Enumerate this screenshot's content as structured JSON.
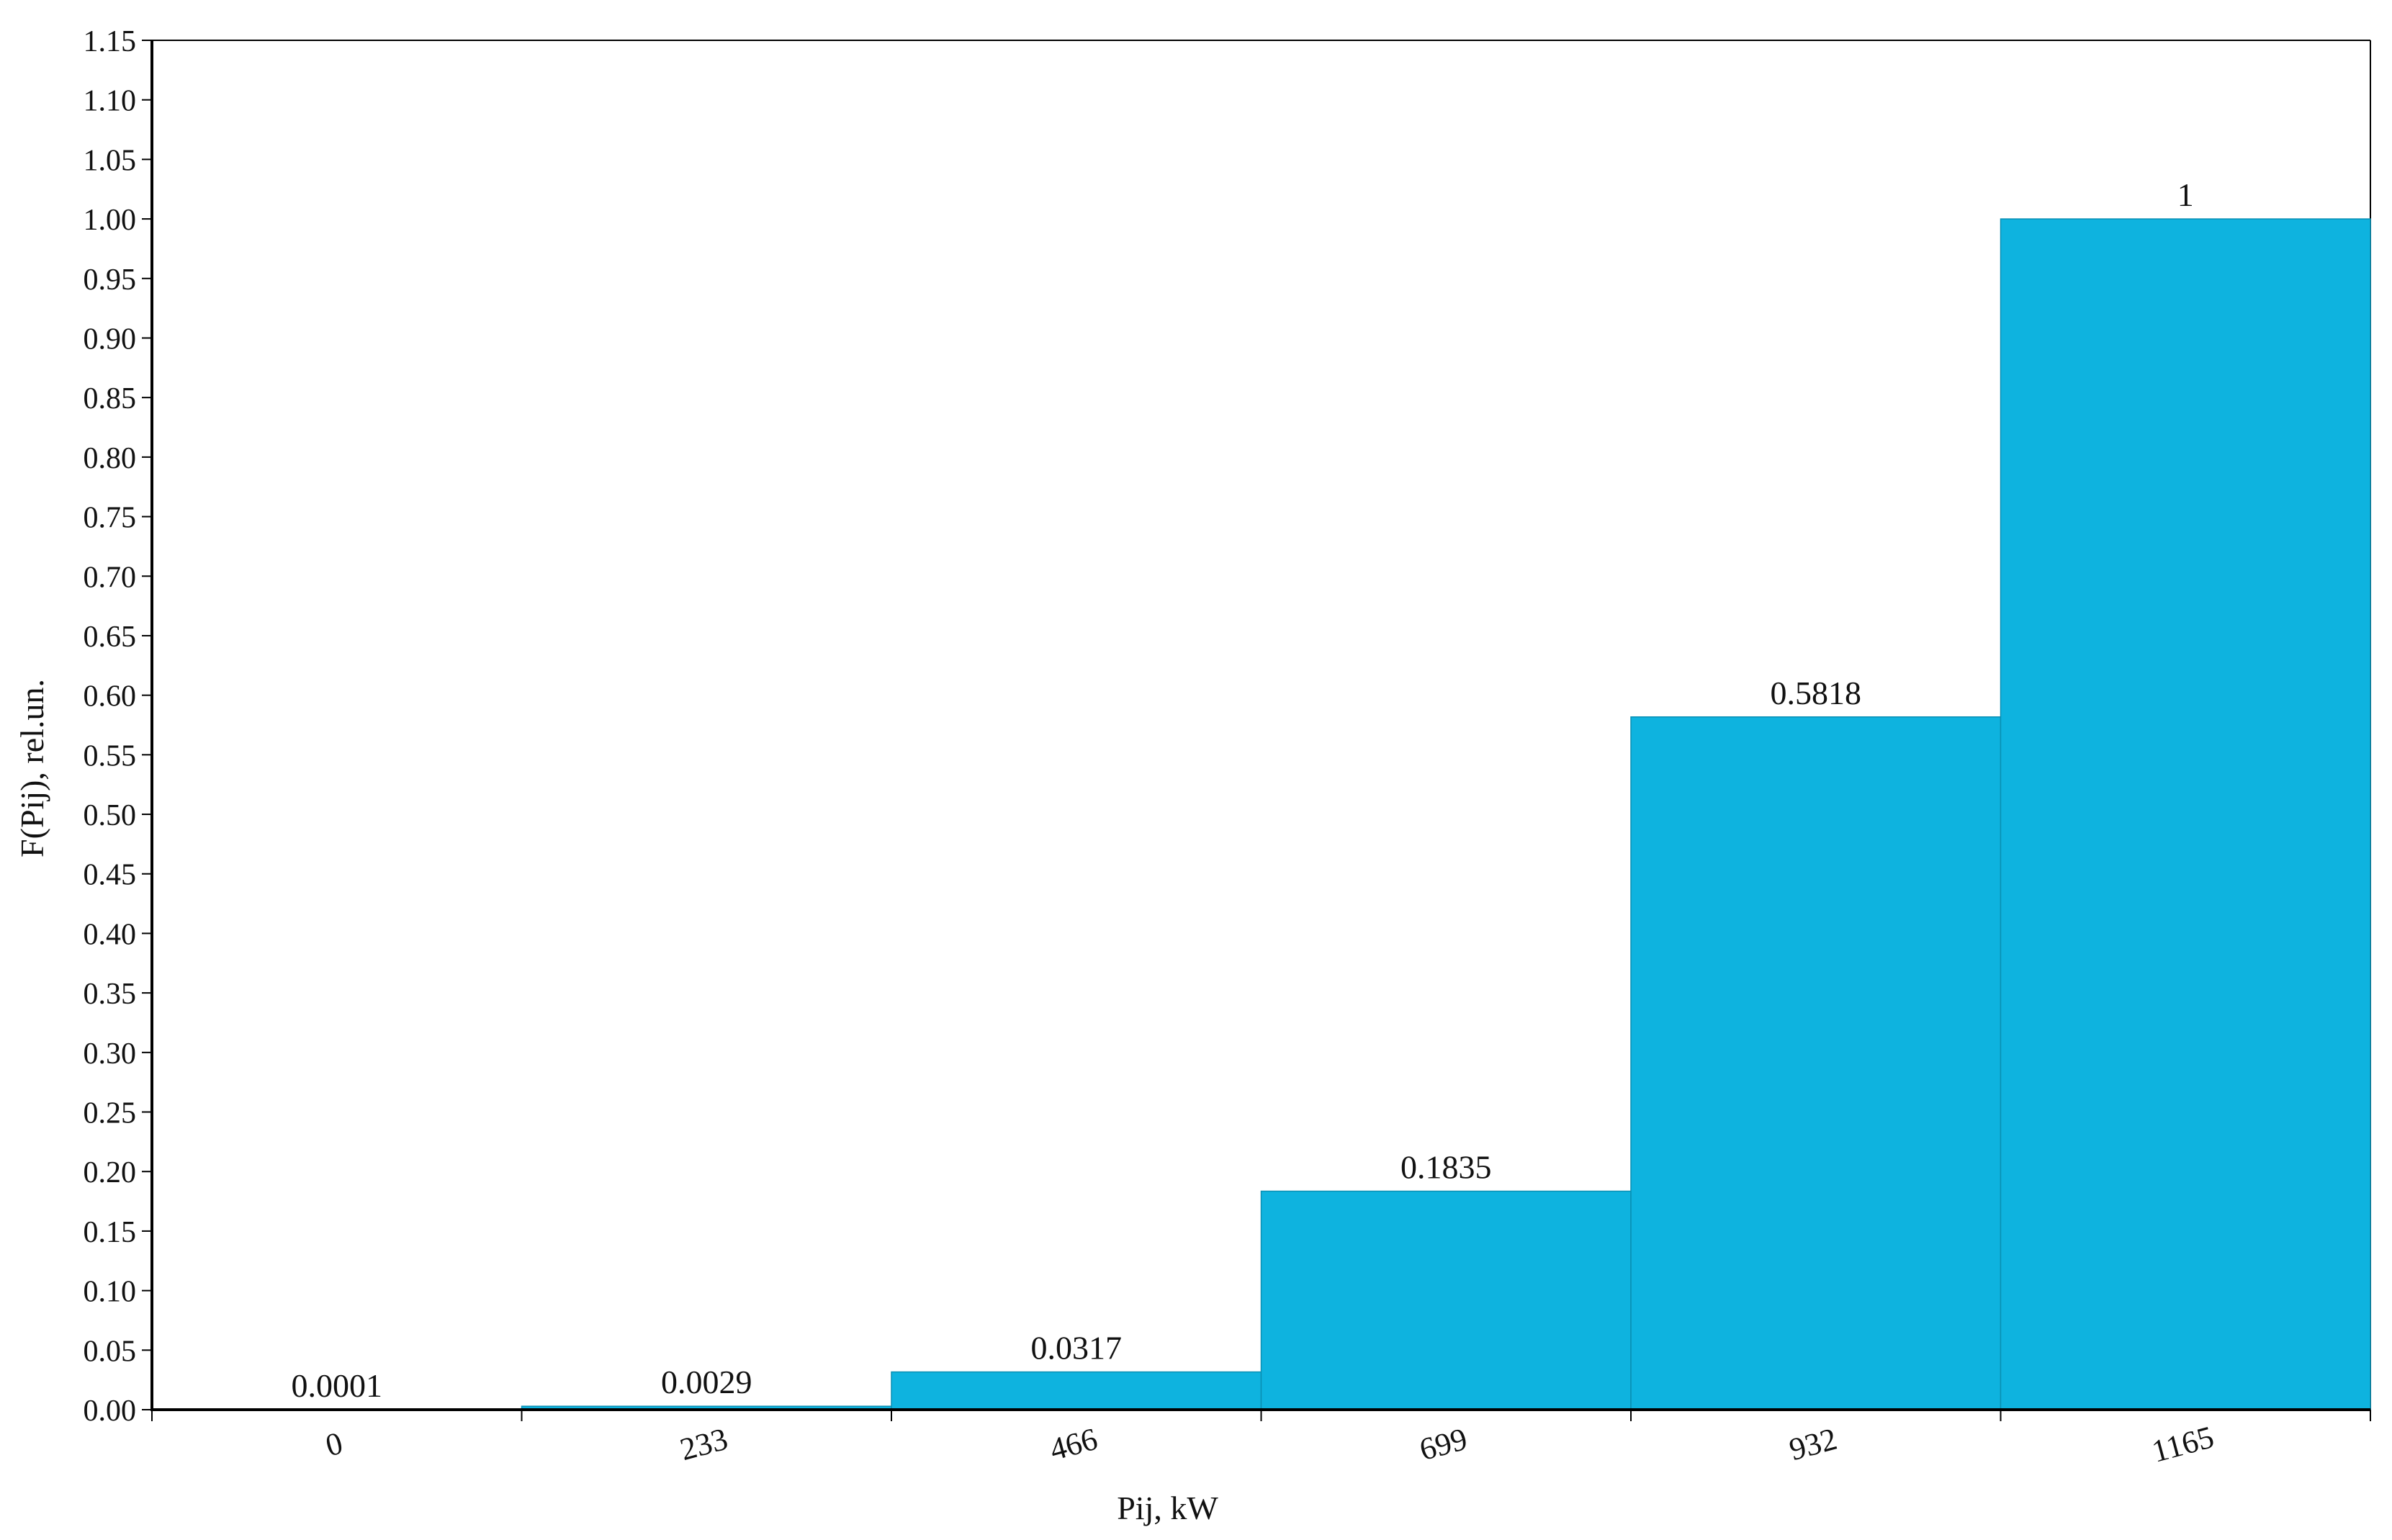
{
  "chart_data": {
    "type": "bar",
    "title": "",
    "xlabel": "Pij, kW",
    "ylabel": "F(Pij), rel.un.",
    "categories": [
      "0",
      "233",
      "466",
      "699",
      "932",
      "1165"
    ],
    "values": [
      0.0001,
      0.0029,
      0.0317,
      0.1835,
      0.5818,
      1
    ],
    "value_labels": [
      "0.0001",
      "0.0029",
      "0.0317",
      "0.1835",
      "0.5818",
      "1"
    ],
    "ylim": [
      0,
      1.15
    ],
    "yticks": [
      "0.00",
      "0.05",
      "0.10",
      "0.15",
      "0.20",
      "0.25",
      "0.30",
      "0.35",
      "0.40",
      "0.45",
      "0.50",
      "0.55",
      "0.60",
      "0.65",
      "0.70",
      "0.75",
      "0.80",
      "0.85",
      "0.90",
      "0.95",
      "1.00",
      "1.05",
      "1.10",
      "1.15"
    ],
    "grid": false,
    "legend": "none",
    "colors": {
      "bar_fill": "#0EB3DF",
      "bar_edge": "#0A8FB3",
      "axis": "#000000",
      "text": "#111111"
    }
  }
}
